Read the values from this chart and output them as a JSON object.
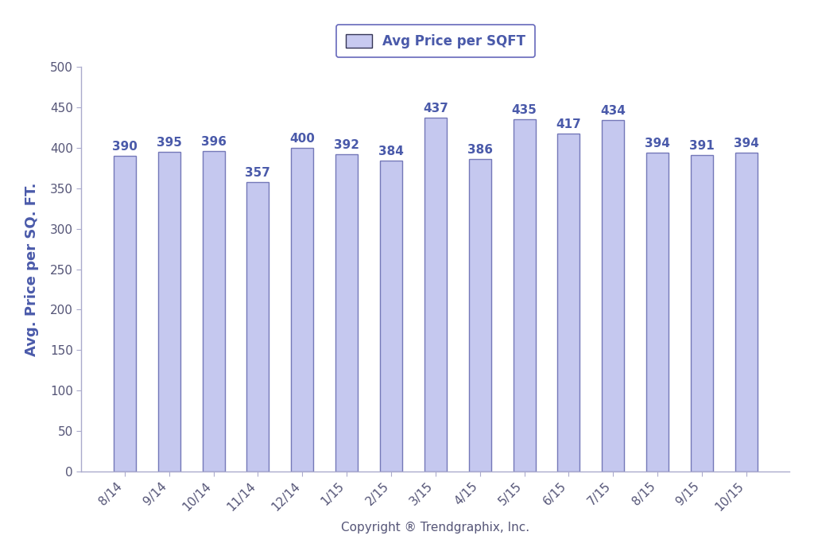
{
  "categories": [
    "8/14",
    "9/14",
    "10/14",
    "11/14",
    "12/14",
    "1/15",
    "2/15",
    "3/15",
    "4/15",
    "5/15",
    "6/15",
    "7/15",
    "8/15",
    "9/15",
    "10/15"
  ],
  "values": [
    390,
    395,
    396,
    357,
    400,
    392,
    384,
    437,
    386,
    435,
    417,
    434,
    394,
    391,
    394
  ],
  "bar_color": "#c5c8ef",
  "bar_edgecolor": "#7478b8",
  "ylabel": "Avg. Price per SQ. FT.",
  "xlabel": "Copyright ® Trendgraphix, Inc.",
  "ylim": [
    0,
    500
  ],
  "yticks": [
    0,
    50,
    100,
    150,
    200,
    250,
    300,
    350,
    400,
    450,
    500
  ],
  "legend_label": "Avg Price per SQFT",
  "legend_facecolor": "#c8caf0",
  "legend_edgecolor": "#6668aa",
  "text_color": "#4a5aaa",
  "axis_color": "#555577",
  "background_color": "#ffffff",
  "bar_width": 0.5,
  "label_fontsize": 12,
  "tick_fontsize": 11,
  "ylabel_fontsize": 13,
  "xlabel_fontsize": 11,
  "annotation_fontsize": 11
}
